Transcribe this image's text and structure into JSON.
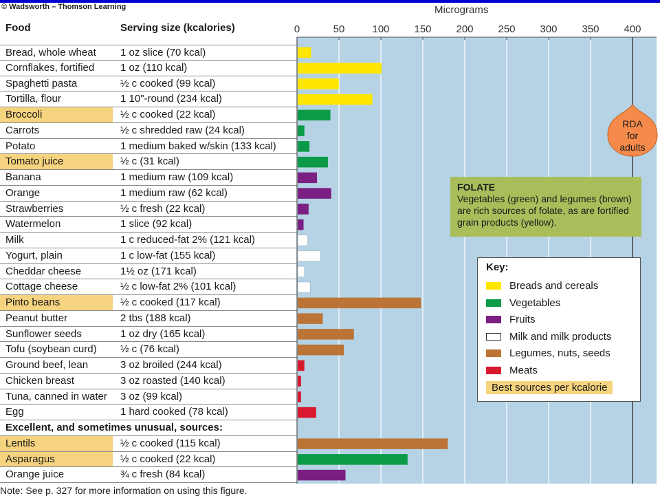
{
  "copyright": "© Wadsworth – Thomson Learning",
  "table": {
    "col_food": "Food",
    "col_serving": "Serving size (kcalories)",
    "section_label": "Excellent, and sometimes unusual, sources:"
  },
  "colors": {
    "Breads and cereals": "#ffe600",
    "Vegetables": "#0a9a48",
    "Fruits": "#7b1f83",
    "Milk and milk products": "#ffffff",
    "Legumes, nuts, seeds": "#bb7436",
    "Meats": "#d9192f",
    "best": "#f6d37e",
    "plot_bg": "#b5d3e4"
  },
  "chart_data": {
    "type": "bar",
    "orientation": "horizontal",
    "xlabel": "Micrograms",
    "xlim": [
      0,
      430
    ],
    "xticks": [
      0,
      50,
      100,
      150,
      200,
      250,
      300,
      350,
      400
    ],
    "grid": true,
    "reference_line": {
      "value": 400,
      "label": "RDA\nfor\nadults"
    },
    "rows": [
      {
        "food": "Bread, whole wheat",
        "serving": "1 oz slice (70 kcal)",
        "value": 16,
        "group": "Breads and cereals",
        "best": false
      },
      {
        "food": "Cornflakes, fortified",
        "serving": "1 oz (110 kcal)",
        "value": 100,
        "group": "Breads and cereals",
        "best": false
      },
      {
        "food": "Spaghetti pasta",
        "serving": "½ c cooked (99 kcal)",
        "value": 49,
        "group": "Breads and cereals",
        "best": false
      },
      {
        "food": "Tortilla, flour",
        "serving": "1 10\"-round (234 kcal)",
        "value": 89,
        "group": "Breads and cereals",
        "best": false
      },
      {
        "food": "Broccoli",
        "serving": "½ c cooked (22 kcal)",
        "value": 39,
        "group": "Vegetables",
        "best": true
      },
      {
        "food": "Carrots",
        "serving": "½ c shredded raw (24 kcal)",
        "value": 8,
        "group": "Vegetables",
        "best": false
      },
      {
        "food": "Potato",
        "serving": "1 medium baked w/skin (133 kcal)",
        "value": 14,
        "group": "Vegetables",
        "best": false
      },
      {
        "food": "Tomato juice",
        "serving": "½ c (31 kcal)",
        "value": 36,
        "group": "Vegetables",
        "best": true
      },
      {
        "food": "Banana",
        "serving": "1 medium raw (109 kcal)",
        "value": 23,
        "group": "Fruits",
        "best": false
      },
      {
        "food": "Orange",
        "serving": "1 medium raw (62 kcal)",
        "value": 40,
        "group": "Fruits",
        "best": false
      },
      {
        "food": "Strawberries",
        "serving": "½ c fresh (22 kcal)",
        "value": 13,
        "group": "Fruits",
        "best": false
      },
      {
        "food": "Watermelon",
        "serving": "1 slice (92 kcal)",
        "value": 7,
        "group": "Fruits",
        "best": false
      },
      {
        "food": "Milk",
        "serving": "1 c reduced-fat 2% (121 kcal)",
        "value": 12,
        "group": "Milk and milk products",
        "best": false
      },
      {
        "food": "Yogurt, plain",
        "serving": "1 c low-fat (155 kcal)",
        "value": 27,
        "group": "Milk and milk products",
        "best": false
      },
      {
        "food": "Cheddar cheese",
        "serving": "1½ oz (171 kcal)",
        "value": 8,
        "group": "Milk and milk products",
        "best": false
      },
      {
        "food": "Cottage cheese",
        "serving": "½ c low-fat 2% (101 kcal)",
        "value": 15,
        "group": "Milk and milk products",
        "best": false
      },
      {
        "food": "Pinto beans",
        "serving": "½ c cooked (117 kcal)",
        "value": 147,
        "group": "Legumes, nuts, seeds",
        "best": true
      },
      {
        "food": "Peanut butter",
        "serving": "2 tbs (188 kcal)",
        "value": 30,
        "group": "Legumes, nuts, seeds",
        "best": false
      },
      {
        "food": "Sunflower seeds",
        "serving": "1 oz dry (165 kcal)",
        "value": 67,
        "group": "Legumes, nuts, seeds",
        "best": false
      },
      {
        "food": "Tofu (soybean curd)",
        "serving": "½ c (76 kcal)",
        "value": 55,
        "group": "Legumes, nuts, seeds",
        "best": false
      },
      {
        "food": "Ground beef, lean",
        "serving": "3 oz broiled (244 kcal)",
        "value": 8,
        "group": "Meats",
        "best": false
      },
      {
        "food": "Chicken breast",
        "serving": "3 oz roasted (140 kcal)",
        "value": 4,
        "group": "Meats",
        "best": false
      },
      {
        "food": "Tuna, canned in water",
        "serving": "3 oz (99 kcal)",
        "value": 4,
        "group": "Meats",
        "best": false
      },
      {
        "food": "Egg",
        "serving": "1 hard cooked (78 kcal)",
        "value": 22,
        "group": "Meats",
        "best": false
      },
      {
        "section": true
      },
      {
        "food": "Lentils",
        "serving": "½ c cooked (115 kcal)",
        "value": 179,
        "group": "Legumes, nuts, seeds",
        "best": true
      },
      {
        "food": "Asparagus",
        "serving": "½ c cooked (22 kcal)",
        "value": 131,
        "group": "Vegetables",
        "best": true
      },
      {
        "food": "Orange juice",
        "serving": "¾ c fresh (84 kcal)",
        "value": 57,
        "group": "Fruits",
        "best": false
      }
    ]
  },
  "folate_box": {
    "title": "FOLATE",
    "text": "Vegetables (green) and legumes (brown) are rich sources of folate, as are fortified grain products (yellow)."
  },
  "key": {
    "title": "Key:",
    "items": [
      {
        "label": "Breads and cereals",
        "color": "#ffe600"
      },
      {
        "label": "Vegetables",
        "color": "#0a9a48"
      },
      {
        "label": "Fruits",
        "color": "#7b1f83"
      },
      {
        "label": "Milk and milk products",
        "color": "#ffffff"
      },
      {
        "label": "Legumes, nuts, seeds",
        "color": "#bb7436"
      },
      {
        "label": "Meats",
        "color": "#d9192f"
      }
    ],
    "best_label": "Best sources per kcalorie"
  },
  "note": "Note: See p. 327 for more information on using this figure."
}
